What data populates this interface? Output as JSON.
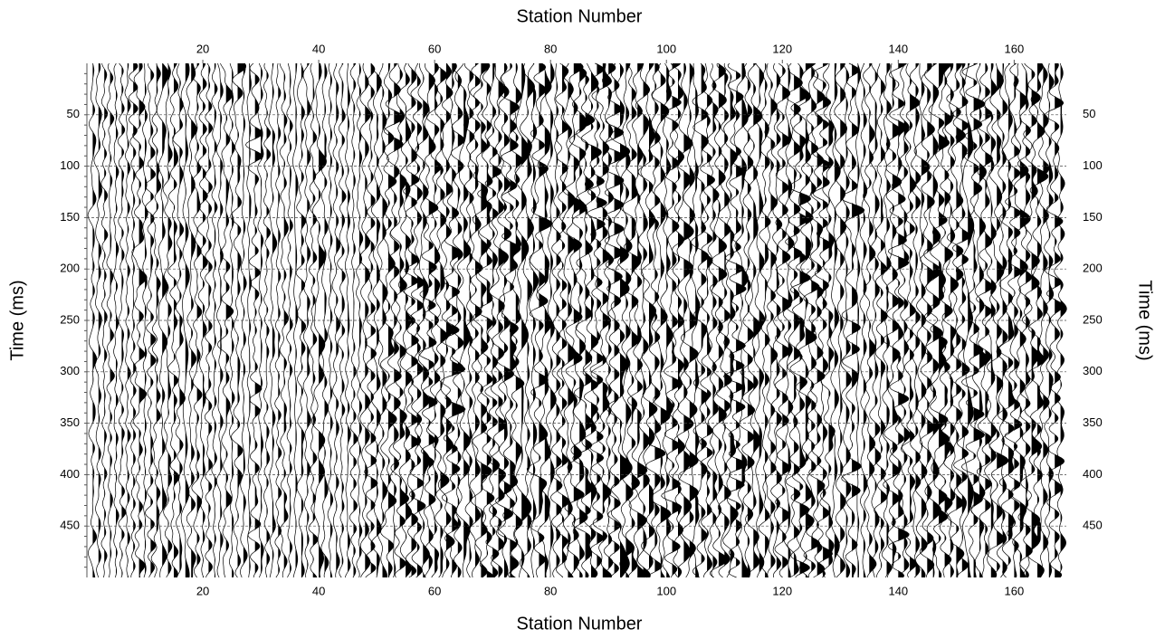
{
  "chart_data": {
    "type": "wiggle",
    "x_label": "Station Number",
    "y_label": "Time (ms)",
    "xlim": [
      0,
      169
    ],
    "xticks": [
      20,
      40,
      60,
      80,
      100,
      120,
      140,
      160
    ],
    "ylim": [
      0,
      500
    ],
    "yticks": [
      50,
      100,
      150,
      200,
      250,
      300,
      350,
      400,
      450
    ],
    "y_reversed": true,
    "grid": true,
    "color": "#000000"
  }
}
